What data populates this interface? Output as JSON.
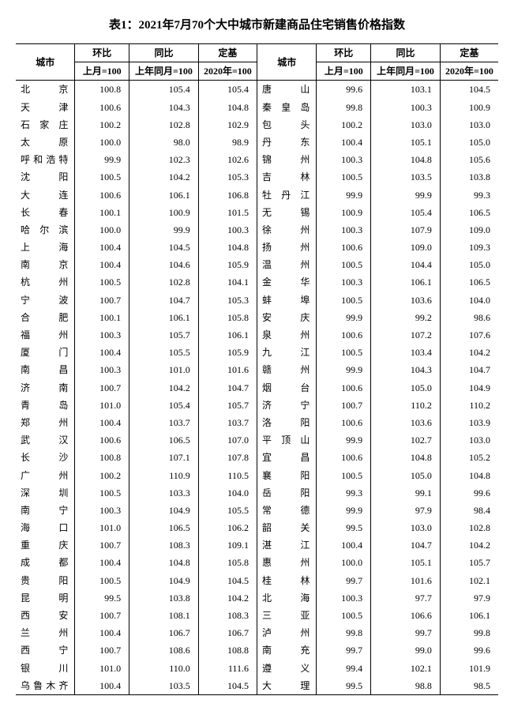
{
  "title": "表1：2021年7月70个大中城市新建商品住宅销售价格指数",
  "headers": {
    "city": "城市",
    "mom": "环比",
    "yoy": "同比",
    "base": "定基",
    "mom_sub": "上月=100",
    "yoy_sub": "上年同月=100",
    "base_sub": "2020年=100"
  },
  "rows": [
    {
      "l": {
        "c": "北　京",
        "m": "100.8",
        "y": "105.4",
        "b": "105.4"
      },
      "r": {
        "c": "唐　山",
        "m": "99.6",
        "y": "103.1",
        "b": "104.5"
      }
    },
    {
      "l": {
        "c": "天　津",
        "m": "100.6",
        "y": "104.3",
        "b": "104.8"
      },
      "r": {
        "c": "秦皇岛",
        "m": "99.8",
        "y": "100.3",
        "b": "100.9"
      }
    },
    {
      "l": {
        "c": "石家庄",
        "m": "100.2",
        "y": "102.8",
        "b": "102.9"
      },
      "r": {
        "c": "包　头",
        "m": "100.2",
        "y": "103.0",
        "b": "103.0"
      }
    },
    {
      "l": {
        "c": "太　原",
        "m": "100.0",
        "y": "98.0",
        "b": "98.9"
      },
      "r": {
        "c": "丹　东",
        "m": "100.4",
        "y": "105.1",
        "b": "105.0"
      }
    },
    {
      "l": {
        "c": "呼和浩特",
        "m": "99.9",
        "y": "102.3",
        "b": "102.6"
      },
      "r": {
        "c": "锦　州",
        "m": "100.3",
        "y": "104.8",
        "b": "105.6"
      }
    },
    {
      "l": {
        "c": "沈　阳",
        "m": "100.5",
        "y": "104.2",
        "b": "105.3"
      },
      "r": {
        "c": "吉　林",
        "m": "100.5",
        "y": "103.5",
        "b": "103.8"
      }
    },
    {
      "l": {
        "c": "大　连",
        "m": "100.6",
        "y": "106.1",
        "b": "106.8"
      },
      "r": {
        "c": "牡丹江",
        "m": "99.9",
        "y": "99.9",
        "b": "99.3"
      }
    },
    {
      "l": {
        "c": "长　春",
        "m": "100.1",
        "y": "100.9",
        "b": "101.5"
      },
      "r": {
        "c": "无　锡",
        "m": "100.9",
        "y": "105.4",
        "b": "106.5"
      }
    },
    {
      "l": {
        "c": "哈尔滨",
        "m": "100.0",
        "y": "99.9",
        "b": "100.3"
      },
      "r": {
        "c": "徐　州",
        "m": "100.3",
        "y": "107.9",
        "b": "109.0"
      }
    },
    {
      "l": {
        "c": "上　海",
        "m": "100.4",
        "y": "104.5",
        "b": "104.8"
      },
      "r": {
        "c": "扬　州",
        "m": "100.6",
        "y": "109.0",
        "b": "109.3"
      }
    },
    {
      "l": {
        "c": "南　京",
        "m": "100.4",
        "y": "104.6",
        "b": "105.9"
      },
      "r": {
        "c": "温　州",
        "m": "100.5",
        "y": "104.4",
        "b": "105.0"
      }
    },
    {
      "l": {
        "c": "杭　州",
        "m": "100.5",
        "y": "102.8",
        "b": "104.1"
      },
      "r": {
        "c": "金　华",
        "m": "100.3",
        "y": "106.1",
        "b": "106.5"
      }
    },
    {
      "l": {
        "c": "宁　波",
        "m": "100.7",
        "y": "104.7",
        "b": "105.3"
      },
      "r": {
        "c": "蚌　埠",
        "m": "100.5",
        "y": "103.6",
        "b": "104.0"
      }
    },
    {
      "l": {
        "c": "合　肥",
        "m": "100.1",
        "y": "106.1",
        "b": "105.8"
      },
      "r": {
        "c": "安　庆",
        "m": "99.9",
        "y": "99.2",
        "b": "98.6"
      }
    },
    {
      "l": {
        "c": "福　州",
        "m": "100.3",
        "y": "105.7",
        "b": "106.1"
      },
      "r": {
        "c": "泉　州",
        "m": "100.6",
        "y": "107.2",
        "b": "107.6"
      }
    },
    {
      "l": {
        "c": "厦　门",
        "m": "100.4",
        "y": "105.5",
        "b": "105.9"
      },
      "r": {
        "c": "九　江",
        "m": "100.5",
        "y": "103.4",
        "b": "104.2"
      }
    },
    {
      "l": {
        "c": "南　昌",
        "m": "100.3",
        "y": "101.0",
        "b": "101.6"
      },
      "r": {
        "c": "赣　州",
        "m": "99.9",
        "y": "104.3",
        "b": "104.7"
      }
    },
    {
      "l": {
        "c": "济　南",
        "m": "100.7",
        "y": "104.2",
        "b": "104.7"
      },
      "r": {
        "c": "烟　台",
        "m": "100.6",
        "y": "105.0",
        "b": "104.9"
      }
    },
    {
      "l": {
        "c": "青　岛",
        "m": "101.0",
        "y": "105.4",
        "b": "105.7"
      },
      "r": {
        "c": "济　宁",
        "m": "100.7",
        "y": "110.2",
        "b": "110.2"
      }
    },
    {
      "l": {
        "c": "郑　州",
        "m": "100.4",
        "y": "103.7",
        "b": "103.7"
      },
      "r": {
        "c": "洛　阳",
        "m": "100.6",
        "y": "103.6",
        "b": "103.9"
      }
    },
    {
      "l": {
        "c": "武　汉",
        "m": "100.6",
        "y": "106.5",
        "b": "107.0"
      },
      "r": {
        "c": "平顶山",
        "m": "99.9",
        "y": "102.7",
        "b": "103.0"
      }
    },
    {
      "l": {
        "c": "长　沙",
        "m": "100.8",
        "y": "107.1",
        "b": "107.8"
      },
      "r": {
        "c": "宜　昌",
        "m": "100.6",
        "y": "104.8",
        "b": "105.2"
      }
    },
    {
      "l": {
        "c": "广　州",
        "m": "100.2",
        "y": "110.9",
        "b": "110.5"
      },
      "r": {
        "c": "襄　阳",
        "m": "100.5",
        "y": "105.0",
        "b": "104.8"
      }
    },
    {
      "l": {
        "c": "深　圳",
        "m": "100.5",
        "y": "103.3",
        "b": "104.0"
      },
      "r": {
        "c": "岳　阳",
        "m": "99.3",
        "y": "99.1",
        "b": "99.6"
      }
    },
    {
      "l": {
        "c": "南　宁",
        "m": "100.3",
        "y": "104.9",
        "b": "105.5"
      },
      "r": {
        "c": "常　德",
        "m": "99.9",
        "y": "97.9",
        "b": "98.4"
      }
    },
    {
      "l": {
        "c": "海　口",
        "m": "101.0",
        "y": "106.5",
        "b": "106.2"
      },
      "r": {
        "c": "韶　关",
        "m": "99.5",
        "y": "103.0",
        "b": "102.8"
      }
    },
    {
      "l": {
        "c": "重　庆",
        "m": "100.7",
        "y": "108.3",
        "b": "109.1"
      },
      "r": {
        "c": "湛　江",
        "m": "100.4",
        "y": "104.7",
        "b": "104.2"
      }
    },
    {
      "l": {
        "c": "成　都",
        "m": "100.4",
        "y": "104.8",
        "b": "105.8"
      },
      "r": {
        "c": "惠　州",
        "m": "100.0",
        "y": "105.1",
        "b": "105.7"
      }
    },
    {
      "l": {
        "c": "贵　阳",
        "m": "100.5",
        "y": "104.9",
        "b": "104.5"
      },
      "r": {
        "c": "桂　林",
        "m": "99.7",
        "y": "101.6",
        "b": "102.1"
      }
    },
    {
      "l": {
        "c": "昆　明",
        "m": "99.5",
        "y": "103.8",
        "b": "104.2"
      },
      "r": {
        "c": "北　海",
        "m": "100.3",
        "y": "97.7",
        "b": "97.9"
      }
    },
    {
      "l": {
        "c": "西　安",
        "m": "100.7",
        "y": "108.1",
        "b": "108.3"
      },
      "r": {
        "c": "三　亚",
        "m": "100.5",
        "y": "106.6",
        "b": "106.1"
      }
    },
    {
      "l": {
        "c": "兰　州",
        "m": "100.4",
        "y": "106.7",
        "b": "106.7"
      },
      "r": {
        "c": "泸　州",
        "m": "99.8",
        "y": "99.7",
        "b": "99.8"
      }
    },
    {
      "l": {
        "c": "西　宁",
        "m": "100.7",
        "y": "108.6",
        "b": "108.8"
      },
      "r": {
        "c": "南　充",
        "m": "99.7",
        "y": "99.0",
        "b": "99.6"
      }
    },
    {
      "l": {
        "c": "银　川",
        "m": "101.0",
        "y": "110.0",
        "b": "111.6"
      },
      "r": {
        "c": "遵　义",
        "m": "99.4",
        "y": "102.1",
        "b": "101.9"
      }
    },
    {
      "l": {
        "c": "乌鲁木齐",
        "m": "100.4",
        "y": "103.5",
        "b": "104.5"
      },
      "r": {
        "c": "大　理",
        "m": "99.5",
        "y": "98.8",
        "b": "98.5"
      }
    }
  ]
}
